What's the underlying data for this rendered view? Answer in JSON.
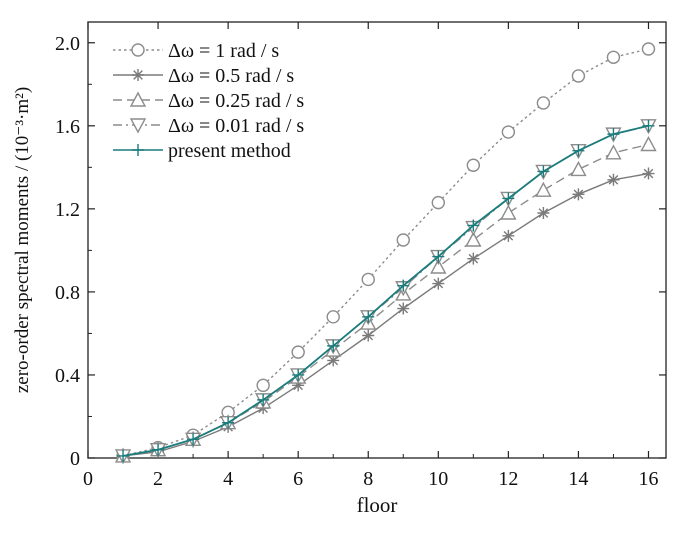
{
  "chart_data": {
    "type": "line",
    "title": "",
    "xlabel": "floor",
    "ylabel": "zero-order spectral moments / (10⁻³·m²)",
    "xlim": [
      0,
      16.5
    ],
    "ylim": [
      0,
      2.1
    ],
    "xticks": [
      0,
      2,
      4,
      6,
      8,
      10,
      12,
      14,
      16
    ],
    "yticks": [
      0,
      0.4,
      0.8,
      1.2,
      1.6,
      2.0
    ],
    "xtick_labels": [
      "0",
      "2",
      "4",
      "6",
      "8",
      "10",
      "12",
      "14",
      "16"
    ],
    "ytick_labels": [
      "0",
      "0.4",
      "0.8",
      "1.2",
      "1.6",
      "2.0"
    ],
    "grid": false,
    "legend_position": "top-left",
    "x": [
      1,
      2,
      3,
      4,
      5,
      6,
      7,
      8,
      9,
      10,
      11,
      12,
      13,
      14,
      15,
      16
    ],
    "series": [
      {
        "name": "Δω = 1 rad / s",
        "color": "#8c8c8c",
        "line_style": "dotted",
        "marker": "circle",
        "values": [
          0.01,
          0.05,
          0.11,
          0.22,
          0.35,
          0.51,
          0.68,
          0.86,
          1.05,
          1.23,
          1.41,
          1.57,
          1.71,
          1.84,
          1.93,
          1.97
        ]
      },
      {
        "name": "Δω = 0.5 rad / s",
        "color": "#7a7a7a",
        "line_style": "solid",
        "marker": "asterisk",
        "values": [
          0.01,
          0.03,
          0.08,
          0.15,
          0.24,
          0.35,
          0.47,
          0.59,
          0.72,
          0.84,
          0.96,
          1.07,
          1.18,
          1.27,
          1.34,
          1.37
        ]
      },
      {
        "name": "Δω = 0.25 rad / s",
        "color": "#8c8c8c",
        "line_style": "dashed",
        "marker": "triangle-up",
        "values": [
          0.01,
          0.04,
          0.09,
          0.17,
          0.27,
          0.39,
          0.52,
          0.65,
          0.79,
          0.92,
          1.05,
          1.18,
          1.29,
          1.39,
          1.47,
          1.51
        ]
      },
      {
        "name": "Δω = 0.01 rad / s",
        "color": "#8c8c8c",
        "line_style": "dashdot",
        "marker": "triangle-down",
        "values": [
          0.01,
          0.04,
          0.09,
          0.17,
          0.28,
          0.4,
          0.54,
          0.68,
          0.82,
          0.97,
          1.11,
          1.25,
          1.38,
          1.48,
          1.56,
          1.6
        ]
      },
      {
        "name": "present method",
        "color": "#1a7c7c",
        "line_style": "solid",
        "marker": "plus",
        "values": [
          0.01,
          0.04,
          0.09,
          0.17,
          0.28,
          0.4,
          0.54,
          0.68,
          0.83,
          0.97,
          1.12,
          1.25,
          1.38,
          1.48,
          1.56,
          1.6
        ]
      }
    ]
  }
}
